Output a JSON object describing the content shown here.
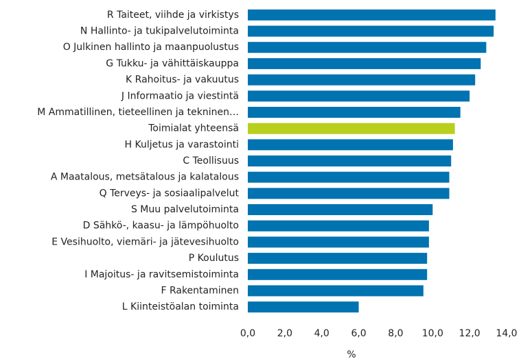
{
  "chart_data": {
    "type": "barh",
    "categories": [
      "R Taiteet, viihde ja virkistys",
      "N Hallinto- ja tukipalvelutoiminta",
      "O Julkinen hallinto ja maanpuolustus",
      "G Tukku- ja vähittäiskauppa",
      "K Rahoitus- ja vakuutus",
      "J Informaatio ja viestintä",
      "M Ammatillinen, tieteellinen ja tekninen…",
      "Toimialat yhteensä",
      "H Kuljetus ja varastointi",
      "C Teollisuus",
      "A Maatalous, metsätalous ja kalatalous",
      "Q Terveys- ja sosiaalipalvelut",
      "S Muu palvelutoiminta",
      "D Sähkö-, kaasu- ja lämpöhuolto",
      "E Vesihuolto, viemäri- ja jätevesihuolto",
      "P Koulutus",
      "I Majoitus- ja ravitsemistoiminta",
      "F Rakentaminen",
      "L Kiinteistöalan toiminta"
    ],
    "values": [
      13.4,
      13.3,
      12.9,
      12.6,
      12.3,
      12.0,
      11.5,
      11.2,
      11.1,
      11.0,
      10.9,
      10.9,
      10.0,
      9.8,
      9.8,
      9.7,
      9.7,
      9.5,
      6.0
    ],
    "colors": [
      "#0073b0",
      "#0073b0",
      "#0073b0",
      "#0073b0",
      "#0073b0",
      "#0073b0",
      "#0073b0",
      "#b8cf1e",
      "#0073b0",
      "#0073b0",
      "#0073b0",
      "#0073b0",
      "#0073b0",
      "#0073b0",
      "#0073b0",
      "#0073b0",
      "#0073b0",
      "#0073b0",
      "#0073b0"
    ],
    "xlabel": "%",
    "xlim": [
      0,
      14
    ],
    "xticks": [
      {
        "value": 0,
        "label": "0,0"
      },
      {
        "value": 2,
        "label": "2,0"
      },
      {
        "value": 4,
        "label": "4,0"
      },
      {
        "value": 6,
        "label": "6,0"
      },
      {
        "value": 8,
        "label": "8,0"
      },
      {
        "value": 10,
        "label": "10,0"
      },
      {
        "value": 12,
        "label": "12,0"
      },
      {
        "value": 14,
        "label": "14,0"
      }
    ],
    "grid": false
  }
}
